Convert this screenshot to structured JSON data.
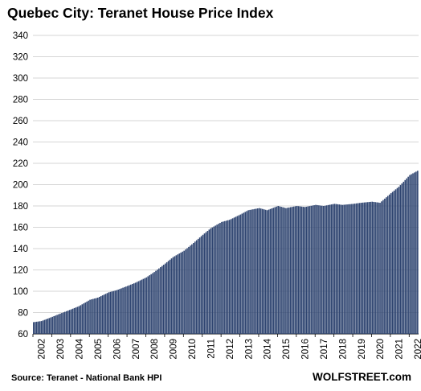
{
  "chart_data": {
    "type": "bar",
    "title": "Quebec City: Teranet House Price Index",
    "xlabel": "",
    "ylabel": "",
    "ylim": [
      60,
      340
    ],
    "yticks": [
      60,
      80,
      100,
      120,
      140,
      160,
      180,
      200,
      220,
      240,
      260,
      280,
      300,
      320,
      340
    ],
    "xtick_labels": [
      "2002",
      "2003",
      "2004",
      "2005",
      "2006",
      "2007",
      "2008",
      "2009",
      "2010",
      "2011",
      "2012",
      "2013",
      "2014",
      "2015",
      "2016",
      "2017",
      "2018",
      "2019",
      "2020",
      "2021",
      "2022"
    ],
    "grid": true,
    "bar_color": "#2e4470",
    "series": [
      {
        "frequency": "monthly, Jan 2002 – mid 2022",
        "anchors": [
          [
            "2002-01",
            71
          ],
          [
            "2002-06",
            72
          ],
          [
            "2003-01",
            76
          ],
          [
            "2003-06",
            79
          ],
          [
            "2004-01",
            83
          ],
          [
            "2004-06",
            86
          ],
          [
            "2005-01",
            92
          ],
          [
            "2005-06",
            94
          ],
          [
            "2006-01",
            99
          ],
          [
            "2006-06",
            101
          ],
          [
            "2007-01",
            105
          ],
          [
            "2007-06",
            108
          ],
          [
            "2008-01",
            113
          ],
          [
            "2008-06",
            118
          ],
          [
            "2009-01",
            126
          ],
          [
            "2009-06",
            132
          ],
          [
            "2010-01",
            138
          ],
          [
            "2010-06",
            144
          ],
          [
            "2011-01",
            153
          ],
          [
            "2011-06",
            159
          ],
          [
            "2012-01",
            165
          ],
          [
            "2012-06",
            167
          ],
          [
            "2013-01",
            172
          ],
          [
            "2013-06",
            176
          ],
          [
            "2014-01",
            178
          ],
          [
            "2014-06",
            176
          ],
          [
            "2015-01",
            180
          ],
          [
            "2015-06",
            178
          ],
          [
            "2016-01",
            180
          ],
          [
            "2016-06",
            179
          ],
          [
            "2017-01",
            181
          ],
          [
            "2017-06",
            180
          ],
          [
            "2018-01",
            182
          ],
          [
            "2018-06",
            181
          ],
          [
            "2019-01",
            182
          ],
          [
            "2019-06",
            183
          ],
          [
            "2020-01",
            184
          ],
          [
            "2020-06",
            183
          ],
          [
            "2021-01",
            192
          ],
          [
            "2021-06",
            198
          ],
          [
            "2022-01",
            209
          ],
          [
            "2022-06",
            213
          ]
        ]
      }
    ]
  },
  "footer": {
    "source": "Source: Teranet - National Bank HPI",
    "brand": "WOLFSTREET.com"
  }
}
